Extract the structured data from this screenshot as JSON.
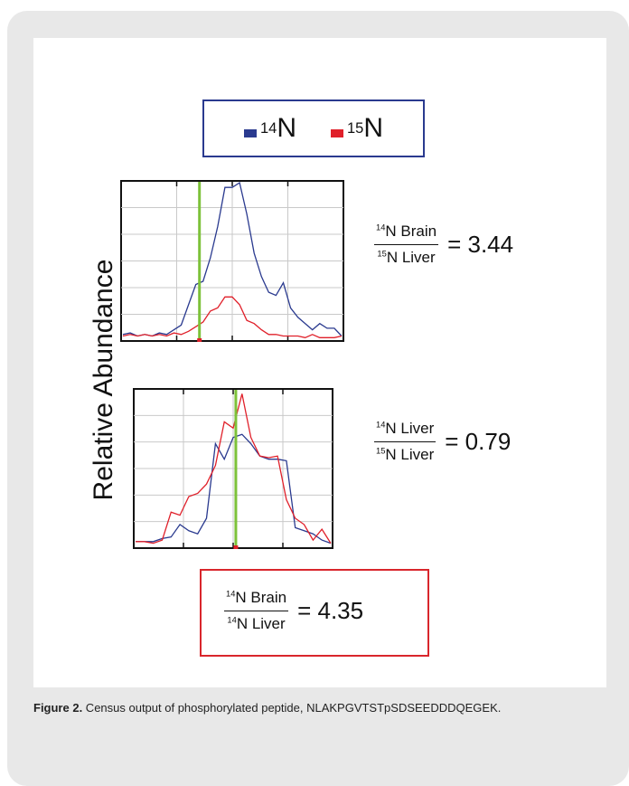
{
  "legend": {
    "n14_label": "N",
    "n14_sup": "14",
    "n14_color": "#2a3a8f",
    "n15_label": "N",
    "n15_sup": "15",
    "n15_color": "#e0202a"
  },
  "ylabel": "Relative Abundance",
  "ratios": [
    {
      "num_sup": "14",
      "num_text": "N Brain",
      "den_sup": "15",
      "den_text": "N Liver",
      "value": "= 3.44"
    },
    {
      "num_sup": "14",
      "num_text": "N Liver",
      "den_sup": "15",
      "den_text": "N Liver",
      "value": "= 0.79"
    },
    {
      "num_sup": "14",
      "num_text": "N Brain",
      "den_sup": "14",
      "den_text": "N Liver",
      "value": "= 4.35"
    }
  ],
  "caption": {
    "label": "Figure 2.",
    "text": " Census output of phosphorylated peptide, NLAKPGVTSTpSDSEEDDDQEGEK."
  },
  "chart_data": [
    {
      "type": "line",
      "xlim": [
        0,
        30
      ],
      "ylim": [
        0,
        100
      ],
      "marker_x": 10.5,
      "marker_color": "#7dc23a",
      "series": [
        {
          "color": "#2a3a8f",
          "x": [
            0,
            1,
            2,
            3,
            4,
            5,
            6,
            7,
            8,
            9,
            10,
            11,
            12,
            13,
            14,
            15,
            16,
            17,
            18,
            19,
            20,
            21,
            22,
            23,
            24,
            25,
            26,
            27,
            28,
            29,
            30
          ],
          "y": [
            3,
            4,
            2,
            3,
            2,
            4,
            3,
            6,
            9,
            22,
            35,
            37,
            52,
            72,
            97,
            97,
            100,
            80,
            55,
            40,
            30,
            28,
            36,
            20,
            14,
            10,
            6,
            10,
            7,
            7,
            2
          ]
        },
        {
          "color": "#e0202a",
          "x": [
            0,
            1,
            2,
            3,
            4,
            5,
            6,
            7,
            8,
            9,
            10,
            11,
            12,
            13,
            14,
            15,
            16,
            17,
            18,
            19,
            20,
            21,
            22,
            23,
            24,
            25,
            26,
            27,
            28,
            29,
            30
          ],
          "y": [
            2,
            3,
            2,
            3,
            2,
            3,
            2,
            4,
            3,
            5,
            8,
            11,
            18,
            20,
            27,
            27,
            22,
            12,
            10,
            6,
            3,
            3,
            2,
            2,
            2,
            1,
            3,
            1,
            1,
            1,
            2
          ]
        }
      ]
    },
    {
      "type": "line",
      "xlim": [
        0,
        22
      ],
      "ylim": [
        0,
        100
      ],
      "marker_x": 11.3,
      "marker_color": "#7dc23a",
      "series": [
        {
          "color": "#2a3a8f",
          "x": [
            0,
            1,
            2,
            3,
            4,
            5,
            6,
            7,
            8,
            9,
            10,
            11,
            12,
            13,
            14,
            15,
            16,
            17,
            18,
            19,
            20,
            21,
            22
          ],
          "y": [
            3,
            3,
            3,
            5,
            6,
            14,
            10,
            8,
            18,
            66,
            56,
            70,
            72,
            66,
            58,
            56,
            56,
            55,
            12,
            10,
            8,
            4,
            2
          ]
        },
        {
          "color": "#e0202a",
          "x": [
            0,
            1,
            2,
            3,
            4,
            5,
            6,
            7,
            8,
            9,
            10,
            11,
            12,
            13,
            14,
            15,
            16,
            17,
            18,
            19,
            20,
            21,
            22
          ],
          "y": [
            3,
            3,
            2,
            4,
            22,
            20,
            32,
            34,
            40,
            52,
            80,
            76,
            98,
            70,
            58,
            57,
            58,
            30,
            18,
            14,
            4,
            11,
            2
          ]
        }
      ]
    }
  ]
}
